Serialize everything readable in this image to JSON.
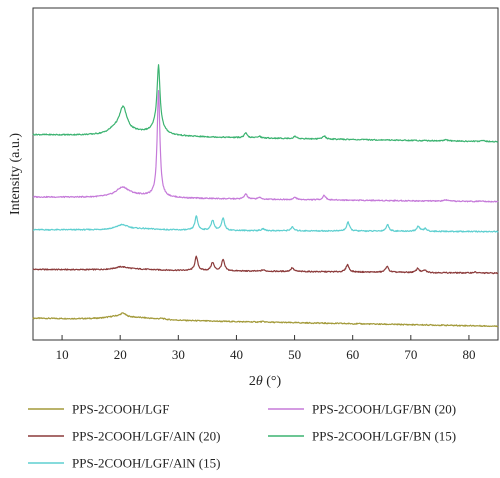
{
  "chart_data": {
    "type": "line",
    "title": "",
    "xlabel_prefix": "2",
    "xlabel_theta": "θ",
    "xlabel_suffix": " (°)",
    "ylabel": "Intensity (a.u.)",
    "xlim": [
      5,
      85
    ],
    "xticks": [
      10,
      20,
      30,
      40,
      50,
      60,
      70,
      80
    ],
    "yticks_shown": false,
    "grid": false,
    "legend_position": "bottom",
    "stack_order_bottom_to_top": [
      "PPS-2COOH/LGF",
      "PPS-2COOH/LGF/AlN (20)",
      "PPS-2COOH/LGF/AlN (15)",
      "PPS-2COOH/LGF/BN (20)",
      "PPS-2COOH/LGF/BN (15)"
    ],
    "series": [
      {
        "name": "PPS-2COOH/LGF",
        "color": "#a39a3a",
        "offset": 0,
        "baseline_start": 0.17,
        "baseline_end": 0.0,
        "peaks": [
          {
            "x": 19.6,
            "height": 0.06,
            "width": 2.4
          },
          {
            "x": 20.5,
            "height": 0.07,
            "width": 0.5
          },
          {
            "x": 23.5,
            "height": 0.04,
            "width": 4.0
          },
          {
            "x": 27.2,
            "height": 0.02,
            "width": 0.5
          },
          {
            "x": 44.5,
            "height": 0.012,
            "width": 0.4
          }
        ]
      },
      {
        "name": "PPS-2COOH/LGF/AlN (20)",
        "color": "#8b3a3a",
        "offset": 1.15,
        "baseline_start": 0.08,
        "baseline_end": 0.0,
        "peaks": [
          {
            "x": 20.2,
            "height": 0.06,
            "width": 1.4
          },
          {
            "x": 23.0,
            "height": 0.02,
            "width": 4.0
          },
          {
            "x": 33.1,
            "height": 0.3,
            "width": 0.3
          },
          {
            "x": 35.9,
            "height": 0.18,
            "width": 0.3
          },
          {
            "x": 37.7,
            "height": 0.24,
            "width": 0.3
          },
          {
            "x": 44.6,
            "height": 0.03,
            "width": 0.3
          },
          {
            "x": 49.6,
            "height": 0.08,
            "width": 0.3
          },
          {
            "x": 59.1,
            "height": 0.16,
            "width": 0.3
          },
          {
            "x": 65.9,
            "height": 0.13,
            "width": 0.3
          },
          {
            "x": 71.2,
            "height": 0.09,
            "width": 0.3
          },
          {
            "x": 72.4,
            "height": 0.05,
            "width": 0.3
          },
          {
            "x": 81.0,
            "height": 0.02,
            "width": 0.3
          }
        ]
      },
      {
        "name": "PPS-2COOH/LGF/AlN (15)",
        "color": "#5ecfd0",
        "offset": 2.05,
        "baseline_start": 0.04,
        "baseline_end": 0.0,
        "peaks": [
          {
            "x": 20.3,
            "height": 0.1,
            "width": 1.2
          },
          {
            "x": 23.5,
            "height": 0.03,
            "width": 4.0
          },
          {
            "x": 33.1,
            "height": 0.3,
            "width": 0.3
          },
          {
            "x": 35.9,
            "height": 0.22,
            "width": 0.3
          },
          {
            "x": 37.7,
            "height": 0.26,
            "width": 0.3
          },
          {
            "x": 44.6,
            "height": 0.04,
            "width": 0.3
          },
          {
            "x": 49.6,
            "height": 0.08,
            "width": 0.3
          },
          {
            "x": 59.2,
            "height": 0.19,
            "width": 0.3
          },
          {
            "x": 66.0,
            "height": 0.14,
            "width": 0.3
          },
          {
            "x": 71.3,
            "height": 0.11,
            "width": 0.3
          },
          {
            "x": 72.5,
            "height": 0.06,
            "width": 0.3
          }
        ]
      },
      {
        "name": "PPS-2COOH/LGF/BN (20)",
        "color": "#c57ad9",
        "offset": 2.7,
        "baseline_start": 0.1,
        "baseline_end": 0.0,
        "peaks": [
          {
            "x": 20.4,
            "height": 0.2,
            "width": 1.4
          },
          {
            "x": 23.5,
            "height": 0.05,
            "width": 4.0
          },
          {
            "x": 26.6,
            "height": 2.3,
            "width": 0.28
          },
          {
            "x": 41.6,
            "height": 0.11,
            "width": 0.3
          },
          {
            "x": 43.9,
            "height": 0.04,
            "width": 0.3
          },
          {
            "x": 50.1,
            "height": 0.05,
            "width": 0.3
          },
          {
            "x": 55.1,
            "height": 0.1,
            "width": 0.3
          },
          {
            "x": 76.0,
            "height": 0.03,
            "width": 0.3
          },
          {
            "x": 82.3,
            "height": 0.02,
            "width": 0.3
          }
        ]
      },
      {
        "name": "PPS-2COOH/LGF/BN (15)",
        "color": "#3cb371",
        "offset": 4.0,
        "baseline_start": 0.15,
        "baseline_end": 0.0,
        "peaks": [
          {
            "x": 19.0,
            "height": 0.1,
            "width": 1.2
          },
          {
            "x": 20.5,
            "height": 0.55,
            "width": 0.8
          },
          {
            "x": 23.5,
            "height": 0.08,
            "width": 4.0
          },
          {
            "x": 26.6,
            "height": 1.2,
            "width": 0.28
          },
          {
            "x": 26.5,
            "height": 0.3,
            "width": 0.8
          },
          {
            "x": 41.6,
            "height": 0.1,
            "width": 0.3
          },
          {
            "x": 43.9,
            "height": 0.04,
            "width": 0.3
          },
          {
            "x": 50.1,
            "height": 0.05,
            "width": 0.3
          },
          {
            "x": 55.1,
            "height": 0.07,
            "width": 0.3
          },
          {
            "x": 76.0,
            "height": 0.03,
            "width": 0.3
          },
          {
            "x": 82.3,
            "height": 0.03,
            "width": 0.3
          }
        ]
      }
    ],
    "legend": [
      {
        "series": "PPS-2COOH/LGF",
        "label": "PPS-2COOH/LGF"
      },
      {
        "series": "PPS-2COOH/LGF/AlN (20)",
        "label": "PPS-2COOH/LGF/AlN (20)"
      },
      {
        "series": "PPS-2COOH/LGF/AlN (15)",
        "label": "PPS-2COOH/LGF/AlN (15)"
      },
      {
        "series": "PPS-2COOH/LGF/BN (20)",
        "label": "PPS-2COOH/LGF/BN (20)"
      },
      {
        "series": "PPS-2COOH/LGF/BN (15)",
        "label": "PPS-2COOH/LGF/BN (15)"
      }
    ],
    "ylim": [
      -0.3,
      6.9
    ]
  }
}
